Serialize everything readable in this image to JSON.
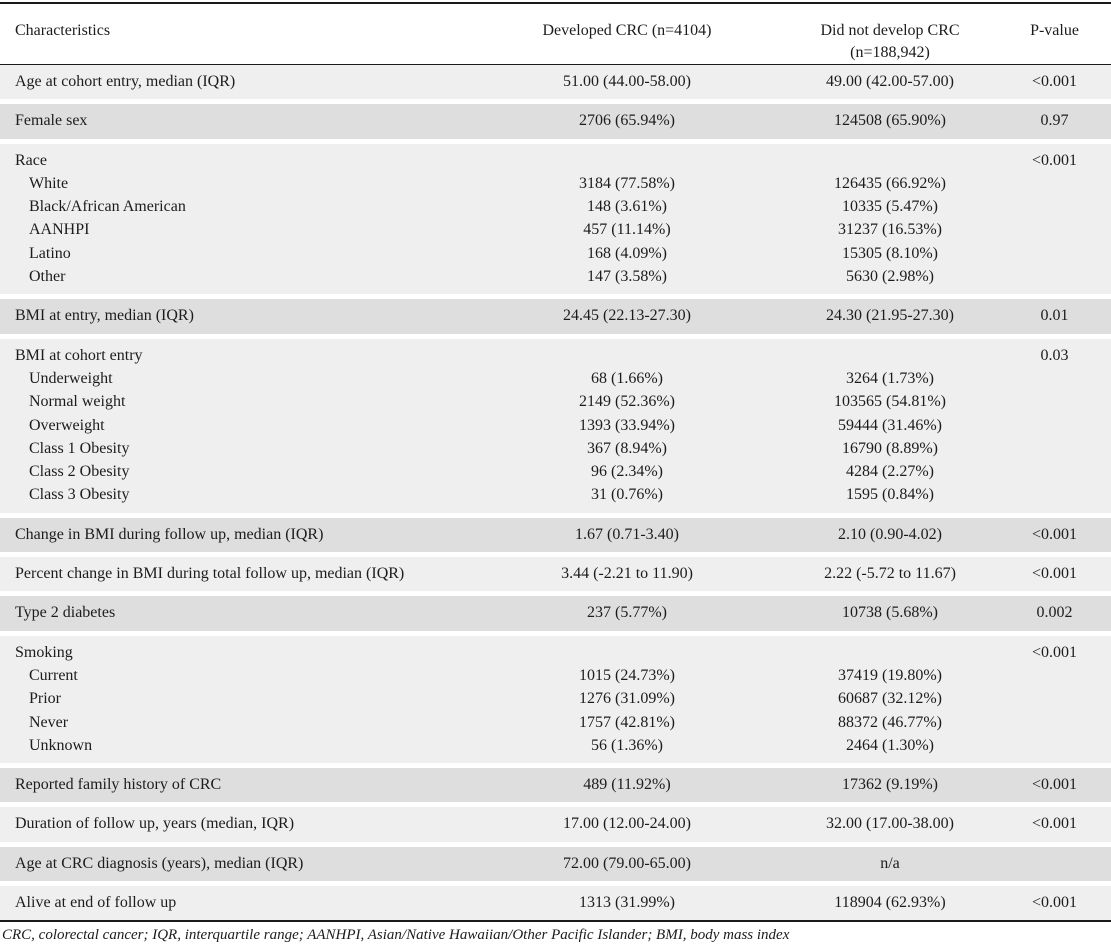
{
  "table": {
    "headers": {
      "characteristics": "Characteristics",
      "developed": "Developed CRC (n=4104)",
      "not_developed_line1": "Did not develop CRC",
      "not_developed_line2": "(n=188,942)",
      "pvalue": "P-value"
    },
    "rows": {
      "age_entry": {
        "label": "Age at cohort entry, median (IQR)",
        "developed": "51.00 (44.00-58.00)",
        "not_developed": "49.00 (42.00-57.00)",
        "p": "<0.001"
      },
      "female": {
        "label": "Female sex",
        "developed": "2706 (65.94%)",
        "not_developed": "124508 (65.90%)",
        "p": "0.97"
      },
      "race": {
        "label": "Race",
        "p": "<0.001",
        "items": [
          {
            "label": "White",
            "developed": "3184 (77.58%)",
            "not_developed": "126435 (66.92%)"
          },
          {
            "label": "Black/African American",
            "developed": "148 (3.61%)",
            "not_developed": "10335 (5.47%)"
          },
          {
            "label": "AANHPI",
            "developed": "457 (11.14%)",
            "not_developed": "31237 (16.53%)"
          },
          {
            "label": "Latino",
            "developed": "168 (4.09%)",
            "not_developed": "15305 (8.10%)"
          },
          {
            "label": "Other",
            "developed": "147 (3.58%)",
            "not_developed": "5630 (2.98%)"
          }
        ]
      },
      "bmi_entry_median": {
        "label": "BMI at entry, median (IQR)",
        "developed": "24.45 (22.13-27.30)",
        "not_developed": "24.30 (21.95-27.30)",
        "p": "0.01"
      },
      "bmi_entry": {
        "label": "BMI at cohort entry",
        "p": "0.03",
        "items": [
          {
            "label": "Underweight",
            "developed": "68 (1.66%)",
            "not_developed": "3264 (1.73%)"
          },
          {
            "label": "Normal weight",
            "developed": "2149 (52.36%)",
            "not_developed": "103565 (54.81%)"
          },
          {
            "label": "Overweight",
            "developed": "1393 (33.94%)",
            "not_developed": "59444 (31.46%)"
          },
          {
            "label": "Class 1 Obesity",
            "developed": "367 (8.94%)",
            "not_developed": "16790 (8.89%)"
          },
          {
            "label": "Class 2 Obesity",
            "developed": "96 (2.34%)",
            "not_developed": "4284 (2.27%)"
          },
          {
            "label": "Class 3 Obesity",
            "developed": "31 (0.76%)",
            "not_developed": "1595 (0.84%)"
          }
        ]
      },
      "bmi_change": {
        "label": "Change in BMI during follow up, median (IQR)",
        "developed": "1.67 (0.71-3.40)",
        "not_developed": "2.10 (0.90-4.02)",
        "p": "<0.001"
      },
      "bmi_pct_change": {
        "label": "Percent change in BMI during total follow up, median (IQR)",
        "developed": "3.44 (-2.21 to 11.90)",
        "not_developed": "2.22 (-5.72 to 11.67)",
        "p": "<0.001"
      },
      "diabetes": {
        "label": "Type 2 diabetes",
        "developed": "237 (5.77%)",
        "not_developed": "10738 (5.68%)",
        "p": "0.002"
      },
      "smoking": {
        "label": "Smoking",
        "p": "<0.001",
        "items": [
          {
            "label": "Current",
            "developed": "1015 (24.73%)",
            "not_developed": "37419 (19.80%)"
          },
          {
            "label": "Prior",
            "developed": "1276 (31.09%)",
            "not_developed": "60687 (32.12%)"
          },
          {
            "label": "Never",
            "developed": "1757 (42.81%)",
            "not_developed": "88372 (46.77%)"
          },
          {
            "label": "Unknown",
            "developed": "56 (1.36%)",
            "not_developed": "2464 (1.30%)"
          }
        ]
      },
      "family_history": {
        "label": "Reported family history of CRC",
        "developed": "489 (11.92%)",
        "not_developed": "17362 (9.19%)",
        "p": "<0.001"
      },
      "followup": {
        "label": "Duration of follow up, years (median, IQR)",
        "developed": "17.00 (12.00-24.00)",
        "not_developed": "32.00 (17.00-38.00)",
        "p": "<0.001"
      },
      "age_diagnosis": {
        "label": "Age at CRC diagnosis (years), median (IQR)",
        "developed": "72.00 (79.00-65.00)",
        "not_developed": "n/a",
        "p": ""
      },
      "alive": {
        "label": "Alive at end of follow up",
        "developed": "1313 (31.99%)",
        "not_developed": "118904 (62.93%)",
        "p": "<0.001"
      }
    },
    "footnote": "CRC, colorectal cancer; IQR, interquartile range; AANHPI, Asian/Native Hawaiian/Other Pacific Islander; BMI, body mass index"
  }
}
